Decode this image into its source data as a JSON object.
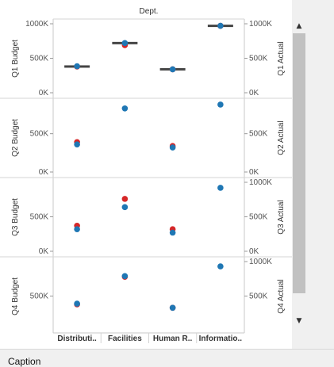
{
  "caption": {
    "title": "Caption"
  },
  "scrollbar": {
    "up_icon": "chevron-up-icon",
    "down_icon": "chevron-down-icon"
  },
  "colors": {
    "budget": "#d62728",
    "actual": "#1f77b4",
    "reference_bar": "#444444"
  },
  "chart_data": {
    "type": "scatter",
    "title": "Dept.",
    "categories": [
      "Distributi..",
      "Facilities",
      "Human R..",
      "Informatio.."
    ],
    "rows": [
      {
        "quarter": "Q1",
        "left_label": "Q1 Budget",
        "right_label": "Q1 Actual",
        "ylim": [
          0,
          1000000
        ],
        "left_ticks": [
          "1000K",
          "500K",
          "0K"
        ],
        "left_tick_values": [
          1000000,
          500000,
          0
        ],
        "right_ticks": [
          "1000K",
          "500K",
          "0K"
        ],
        "right_tick_values": [
          1000000,
          500000,
          0
        ],
        "budget": [
          380000,
          690000,
          340000,
          970000
        ],
        "actual": [
          385000,
          720000,
          340000,
          970000
        ],
        "reference": [
          380000,
          720000,
          340000,
          970000
        ]
      },
      {
        "quarter": "Q2",
        "left_label": "Q2 Budget",
        "right_label": "Q2 Actual",
        "ylim": [
          0,
          900000
        ],
        "left_ticks": [
          "500K",
          "0K"
        ],
        "left_tick_values": [
          500000,
          0
        ],
        "right_ticks": [
          "500K",
          "0K"
        ],
        "right_tick_values": [
          500000,
          0
        ],
        "budget": [
          390000,
          null,
          340000,
          null
        ],
        "actual": [
          360000,
          830000,
          320000,
          880000
        ]
      },
      {
        "quarter": "Q3",
        "left_label": "Q3 Budget",
        "right_label": "Q3 Actual",
        "ylim": [
          0,
          1000000
        ],
        "left_ticks": [
          "500K",
          "0K"
        ],
        "left_tick_values": [
          500000,
          0
        ],
        "right_ticks": [
          "1000K",
          "500K",
          "0K"
        ],
        "right_tick_values": [
          1000000,
          500000,
          0
        ],
        "budget": [
          370000,
          760000,
          320000,
          null
        ],
        "actual": [
          320000,
          640000,
          270000,
          920000
        ]
      },
      {
        "quarter": "Q4",
        "left_label": "Q4 Budget",
        "right_label": "Q4 Actual",
        "ylim": [
          0,
          1000000
        ],
        "left_ticks": [
          "500K"
        ],
        "left_tick_values": [
          500000
        ],
        "right_ticks": [
          "1000K",
          "500K"
        ],
        "right_tick_values": [
          1000000,
          500000
        ],
        "budget": [
          380000,
          780000,
          330000,
          null
        ],
        "actual": [
          390000,
          790000,
          330000,
          930000
        ]
      }
    ],
    "grid": false,
    "legend": "none"
  }
}
